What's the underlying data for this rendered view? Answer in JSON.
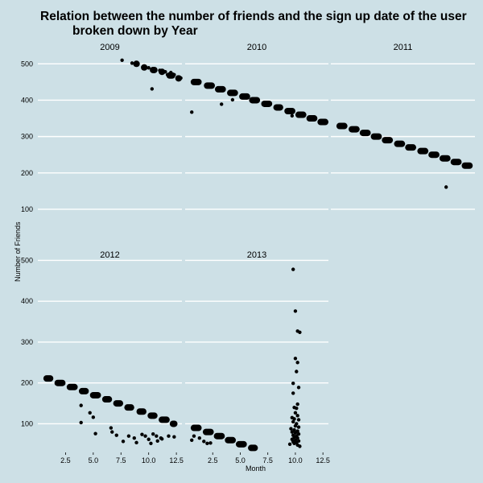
{
  "chart_data": {
    "type": "scatter",
    "title_line1": "Relation between the number of friends and the sign up date of the user",
    "title_line2": "broken down by Year",
    "xlabel": "Month",
    "ylabel": "Number of Friends",
    "xlim": [
      0,
      13
    ],
    "x_ticks": [
      2.5,
      5.0,
      7.5,
      10.0,
      12.5
    ],
    "x_tick_labels": [
      "2.5",
      "5.0",
      "7.5",
      "10.0",
      "12.5"
    ],
    "y_ticks": [
      100,
      200,
      300,
      400,
      500
    ],
    "y_tick_labels": [
      "100",
      "200",
      "300",
      "400",
      "500"
    ],
    "top_row_ylim": [
      60,
      525
    ],
    "bottom_row_ylim": [
      30,
      495
    ],
    "grid": true,
    "facets": [
      {
        "name": "2009",
        "points": [
          [
            7.6,
            510
          ],
          [
            8.5,
            502
          ],
          [
            9.0,
            499
          ],
          [
            9.6,
            493
          ],
          [
            10.0,
            489
          ],
          [
            10.5,
            485
          ],
          [
            11.0,
            482
          ],
          [
            11.5,
            478
          ],
          [
            12.0,
            476
          ],
          [
            10.3,
            431
          ],
          [
            12.3,
            470
          ],
          [
            12.6,
            463
          ],
          [
            11.7,
            470
          ],
          [
            12.9,
            461
          ]
        ],
        "bands": [
          [
            8.6,
            9.2,
            500
          ],
          [
            9.3,
            9.9,
            490
          ],
          [
            10.1,
            10.8,
            483
          ],
          [
            10.9,
            11.5,
            478
          ],
          [
            11.6,
            12.4,
            468
          ],
          [
            12.4,
            13.0,
            460
          ]
        ]
      },
      {
        "name": "2010",
        "points": [
          [
            0.6,
            367
          ],
          [
            3.3,
            389
          ],
          [
            4.3,
            401
          ],
          [
            9.7,
            357
          ]
        ],
        "bands": [
          [
            0.5,
            1.5,
            450
          ],
          [
            1.7,
            2.7,
            440
          ],
          [
            2.7,
            3.7,
            430
          ],
          [
            3.8,
            4.8,
            420
          ],
          [
            4.9,
            5.9,
            410
          ],
          [
            5.8,
            6.8,
            400
          ],
          [
            6.9,
            7.9,
            390
          ],
          [
            8.0,
            8.9,
            380
          ],
          [
            9.0,
            10.0,
            370
          ],
          [
            10.0,
            11.0,
            360
          ],
          [
            11.0,
            12.0,
            350
          ],
          [
            12.0,
            13.0,
            340
          ]
        ]
      },
      {
        "name": "2011",
        "points": [
          [
            10.4,
            161
          ]
        ],
        "bands": [
          [
            0.5,
            1.5,
            329
          ],
          [
            1.6,
            2.6,
            320
          ],
          [
            2.6,
            3.6,
            310
          ],
          [
            3.6,
            4.6,
            300
          ],
          [
            4.6,
            5.6,
            290
          ],
          [
            5.7,
            6.7,
            280
          ],
          [
            6.7,
            7.7,
            270
          ],
          [
            7.8,
            8.8,
            260
          ],
          [
            8.8,
            9.8,
            250
          ],
          [
            9.8,
            10.8,
            240
          ],
          [
            10.8,
            11.8,
            230
          ],
          [
            11.8,
            12.8,
            220
          ]
        ]
      },
      {
        "name": "2012",
        "points": [
          [
            3.9,
            145
          ],
          [
            3.9,
            103
          ],
          [
            4.7,
            127
          ],
          [
            5.0,
            116
          ],
          [
            5.2,
            76
          ],
          [
            6.6,
            90
          ],
          [
            6.7,
            80
          ],
          [
            7.1,
            72
          ],
          [
            7.7,
            57
          ],
          [
            8.2,
            70
          ],
          [
            8.7,
            65
          ],
          [
            8.9,
            54
          ],
          [
            9.4,
            74
          ],
          [
            9.7,
            70
          ],
          [
            10.0,
            62
          ],
          [
            10.4,
            75
          ],
          [
            10.7,
            70
          ],
          [
            10.8,
            58
          ],
          [
            11.1,
            65
          ],
          [
            11.2,
            63
          ],
          [
            11.8,
            70
          ],
          [
            12.3,
            68
          ],
          [
            10.2,
            52
          ]
        ],
        "bands": [
          [
            0.5,
            1.4,
            211
          ],
          [
            1.5,
            2.5,
            200
          ],
          [
            2.6,
            3.6,
            190
          ],
          [
            3.7,
            4.6,
            180
          ],
          [
            4.7,
            5.7,
            170
          ],
          [
            5.8,
            6.7,
            160
          ],
          [
            6.8,
            7.7,
            150
          ],
          [
            7.8,
            8.7,
            140
          ],
          [
            8.9,
            9.8,
            130
          ],
          [
            9.9,
            10.8,
            120
          ],
          [
            10.9,
            11.9,
            110
          ],
          [
            11.9,
            12.6,
            100
          ]
        ]
      },
      {
        "name": "2013",
        "points": [
          [
            0.6,
            60
          ],
          [
            0.8,
            70
          ],
          [
            1.3,
            65
          ],
          [
            1.7,
            57
          ],
          [
            2.0,
            52
          ],
          [
            2.3,
            53
          ],
          [
            9.5,
            50
          ],
          [
            9.8,
            478
          ],
          [
            10.0,
            376
          ],
          [
            10.2,
            327
          ],
          [
            10.4,
            324
          ],
          [
            10.0,
            260
          ],
          [
            10.2,
            250
          ],
          [
            10.1,
            228
          ],
          [
            9.8,
            199
          ],
          [
            10.3,
            189
          ],
          [
            9.8,
            175
          ],
          [
            10.2,
            148
          ],
          [
            9.9,
            140
          ],
          [
            10.1,
            138
          ],
          [
            10.0,
            127
          ],
          [
            10.2,
            120
          ],
          [
            9.7,
            115
          ],
          [
            9.9,
            112
          ],
          [
            10.3,
            110
          ],
          [
            9.8,
            105
          ],
          [
            10.1,
            100
          ],
          [
            10.0,
            95
          ],
          [
            10.3,
            92
          ],
          [
            9.6,
            88
          ],
          [
            9.9,
            85
          ],
          [
            10.2,
            82
          ],
          [
            9.7,
            80
          ],
          [
            10.0,
            78
          ],
          [
            10.3,
            75
          ],
          [
            9.8,
            72
          ],
          [
            10.1,
            70
          ],
          [
            9.9,
            67
          ],
          [
            10.2,
            65
          ],
          [
            9.7,
            62
          ],
          [
            10.0,
            60
          ],
          [
            10.3,
            58
          ],
          [
            9.8,
            56
          ],
          [
            10.1,
            54
          ],
          [
            9.9,
            52
          ],
          [
            10.2,
            48
          ],
          [
            10.4,
            45
          ]
        ],
        "bands": [
          [
            0.5,
            1.5,
            90
          ],
          [
            1.6,
            2.6,
            80
          ],
          [
            2.6,
            3.6,
            70
          ],
          [
            3.6,
            4.6,
            60
          ],
          [
            4.6,
            5.6,
            50
          ],
          [
            5.7,
            6.6,
            41
          ]
        ]
      }
    ]
  }
}
